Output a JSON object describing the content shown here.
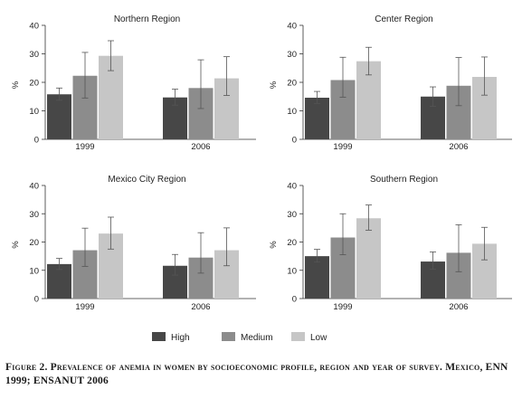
{
  "legend": [
    {
      "label": "High",
      "color": "#474747"
    },
    {
      "label": "Medium",
      "color": "#8c8c8c"
    },
    {
      "label": "Low",
      "color": "#c6c6c6"
    }
  ],
  "caption": "Figure 2. Prevalence of anemia in women by socioeconomic profile, region and year of survey. Mexico, ENN 1999; ENSANUT 2006",
  "chart_data": [
    {
      "type": "bar",
      "title": "Northern Region",
      "ylabel": "%",
      "ylim": [
        0,
        40
      ],
      "yticks": [
        "0",
        "10",
        "20",
        "30",
        "40"
      ],
      "categories": [
        "1999",
        "2006"
      ],
      "series": [
        {
          "name": "High",
          "values": [
            15.8,
            14.7
          ],
          "err_low": [
            13.7,
            12.0
          ],
          "err_high": [
            18.0,
            17.6
          ]
        },
        {
          "name": "Medium",
          "values": [
            22.3,
            18.0
          ],
          "err_low": [
            14.5,
            10.8
          ],
          "err_high": [
            30.5,
            27.9
          ]
        },
        {
          "name": "Low",
          "values": [
            29.3,
            21.4
          ],
          "err_low": [
            24.1,
            15.4
          ],
          "err_high": [
            34.6,
            29.0
          ]
        }
      ]
    },
    {
      "type": "bar",
      "title": "Center Region",
      "ylabel": "%",
      "ylim": [
        0,
        40
      ],
      "yticks": [
        "0",
        "10",
        "20",
        "30",
        "40"
      ],
      "categories": [
        "1999",
        "2006"
      ],
      "series": [
        {
          "name": "High",
          "values": [
            14.6,
            15.0
          ],
          "err_low": [
            12.6,
            11.6
          ],
          "err_high": [
            16.8,
            18.4
          ]
        },
        {
          "name": "Medium",
          "values": [
            20.8,
            18.8
          ],
          "err_low": [
            14.8,
            11.8
          ],
          "err_high": [
            28.8,
            28.7
          ]
        },
        {
          "name": "Low",
          "values": [
            27.4,
            21.9
          ],
          "err_low": [
            22.6,
            15.5
          ],
          "err_high": [
            32.3,
            28.9
          ]
        }
      ]
    },
    {
      "type": "bar",
      "title": "Mexico City Region",
      "ylabel": "%",
      "ylim": [
        0,
        40
      ],
      "yticks": [
        "0",
        "10",
        "20",
        "30",
        "40"
      ],
      "categories": [
        "1999",
        "2006"
      ],
      "series": [
        {
          "name": "High",
          "values": [
            12.2,
            11.6
          ],
          "err_low": [
            10.3,
            8.3
          ],
          "err_high": [
            14.2,
            15.6
          ]
        },
        {
          "name": "Medium",
          "values": [
            17.1,
            14.5
          ],
          "err_low": [
            11.4,
            9.0
          ],
          "err_high": [
            24.9,
            23.3
          ]
        },
        {
          "name": "Low",
          "values": [
            23.0,
            17.1
          ],
          "err_low": [
            17.5,
            11.6
          ],
          "err_high": [
            28.8,
            25.0
          ]
        }
      ]
    },
    {
      "type": "bar",
      "title": "Southern Region",
      "ylabel": "%",
      "ylim": [
        0,
        40
      ],
      "yticks": [
        "0",
        "10",
        "20",
        "30",
        "40"
      ],
      "categories": [
        "1999",
        "2006"
      ],
      "series": [
        {
          "name": "High",
          "values": [
            15.0,
            13.1
          ],
          "err_low": [
            12.9,
            10.4
          ],
          "err_high": [
            17.4,
            16.5
          ]
        },
        {
          "name": "Medium",
          "values": [
            21.6,
            16.2
          ],
          "err_low": [
            15.5,
            9.5
          ],
          "err_high": [
            30.0,
            26.1
          ]
        },
        {
          "name": "Low",
          "values": [
            28.4,
            19.4
          ],
          "err_low": [
            24.2,
            13.7
          ],
          "err_high": [
            33.1,
            25.2
          ]
        }
      ]
    }
  ]
}
